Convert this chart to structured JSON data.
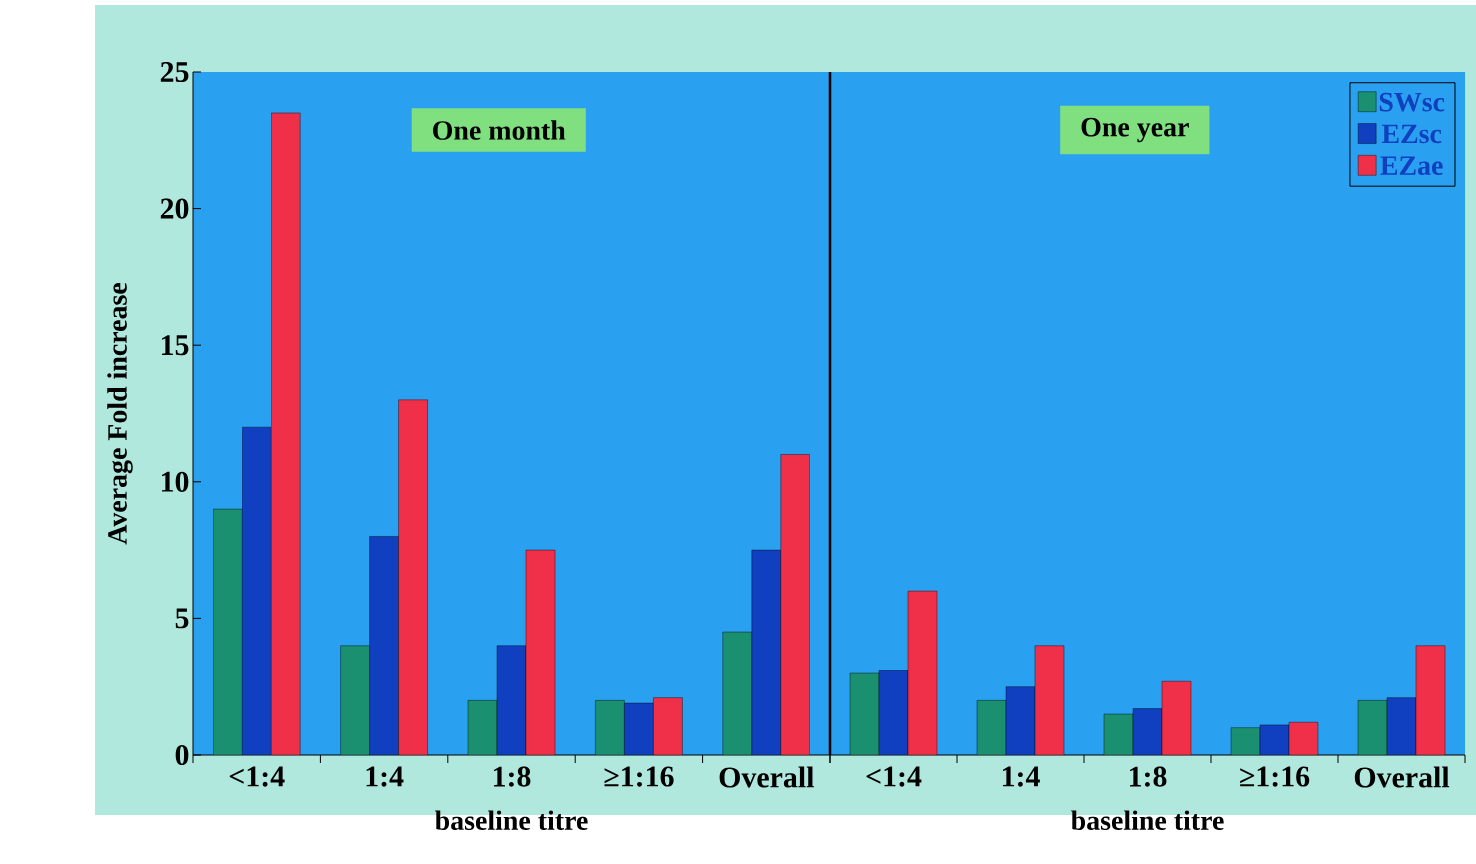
{
  "chart_data": [
    {
      "type": "bar",
      "categories": [
        "<1:4",
        "1:4",
        "1:8",
        "≥1:16",
        "Overall"
      ],
      "xlabel": "baseline titre",
      "ylabel": "Average Fold  increase",
      "ylim": [
        0,
        25
      ],
      "yticks": [
        0,
        5,
        10,
        15,
        20,
        25
      ],
      "annotations": [
        "One month"
      ],
      "series": [
        {
          "color": "#1a9070",
          "values": [
            9.0,
            4.0,
            2.0,
            2.0,
            4.5
          ]
        },
        {
          "color": "#1040c0",
          "values": [
            12.0,
            8.0,
            4.0,
            1.9,
            7.5
          ]
        },
        {
          "color": "#f03048",
          "values": [
            23.5,
            13.0,
            7.5,
            2.1,
            11.0
          ]
        }
      ]
    },
    {
      "type": "bar",
      "categories": [
        "<1:4",
        "1:4",
        "1:8",
        "≥1:16",
        "Overall"
      ],
      "xlabel": "baseline titre",
      "ylim": [
        0,
        25
      ],
      "tick_labels": "x",
      "legend": "top right",
      "annotations": [
        "One year"
      ],
      "series": [
        {
          "name": "SWsc",
          "color": "#1a9070",
          "values": [
            3.0,
            2.0,
            1.5,
            1.0,
            2.0
          ]
        },
        {
          "name": "EZsc",
          "color": "#1040c0",
          "values": [
            3.1,
            2.5,
            1.7,
            1.1,
            2.1
          ]
        },
        {
          "name": "EZae",
          "color": "#f03048",
          "values": [
            6.0,
            4.0,
            2.7,
            1.2,
            4.0
          ]
        }
      ]
    }
  ]
}
